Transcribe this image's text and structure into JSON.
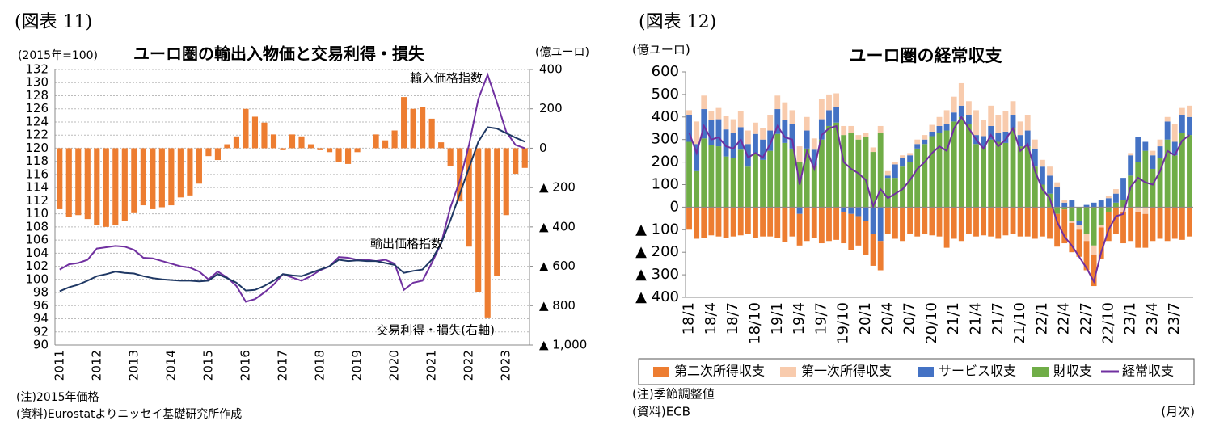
{
  "chart_data": [
    {
      "type": "bar_line",
      "figure_label": "(図表 11)",
      "title": "ユーロ圏の輸出入物価と交易利得・損失",
      "y_label": "(2015年=100)",
      "y2_label": "(億ユーロ)",
      "notes": [
        "(注)2015年価格",
        "(資料)Eurostatよりニッセイ基礎研究所作成"
      ],
      "categories": [
        "2011",
        null,
        null,
        null,
        "2012",
        null,
        null,
        null,
        "2013",
        null,
        null,
        null,
        "2014",
        null,
        null,
        null,
        "2015",
        null,
        null,
        null,
        "2016",
        null,
        null,
        null,
        "2017",
        null,
        null,
        null,
        "2018",
        null,
        null,
        null,
        "2019",
        null,
        null,
        null,
        "2020",
        null,
        null,
        null,
        "2021",
        null,
        null,
        null,
        "2022",
        null,
        null,
        null,
        "2023",
        null,
        null
      ],
      "ylim": [
        90,
        132
      ],
      "yticks": [
        90,
        92,
        94,
        96,
        98,
        100,
        102,
        104,
        106,
        108,
        110,
        112,
        114,
        116,
        118,
        120,
        122,
        124,
        126,
        128,
        130,
        132
      ],
      "y2lim": [
        -1000,
        400
      ],
      "y2ticks": [
        400,
        200,
        0,
        {
          "value": -200,
          "label": "▲ 200"
        },
        {
          "value": -400,
          "label": "▲ 400"
        },
        {
          "value": -600,
          "label": "▲ 600"
        },
        {
          "value": -800,
          "label": "▲ 800"
        },
        {
          "value": -1000,
          "label": "▲ 1,000"
        }
      ],
      "grid": true,
      "series": [
        {
          "name": "交易利得・損失(右軸)",
          "type": "bar",
          "axis": "y2",
          "color": "#ed7d31",
          "values": [
            -310,
            -350,
            -340,
            -360,
            -390,
            -400,
            -390,
            -370,
            -330,
            -290,
            -310,
            -300,
            -290,
            -250,
            -240,
            -180,
            -40,
            -60,
            20,
            60,
            200,
            160,
            130,
            70,
            -10,
            70,
            60,
            20,
            -10,
            -20,
            -70,
            -80,
            -20,
            0,
            70,
            40,
            90,
            260,
            200,
            210,
            150,
            30,
            -90,
            -270,
            -500,
            -730,
            -860,
            -650,
            -340,
            -130,
            -100
          ]
        },
        {
          "name": "輸入価格指数",
          "type": "line",
          "color": "#7030a0",
          "values": [
            101.5,
            102.3,
            102.5,
            103,
            104.7,
            104.9,
            105.1,
            105,
            104.5,
            103.3,
            103.2,
            102.8,
            102.4,
            102,
            101.8,
            101.2,
            100,
            101.2,
            100.3,
            99,
            96.6,
            97,
            98,
            99.2,
            100.8,
            100.3,
            99.8,
            100.5,
            101.4,
            102,
            103.4,
            103.3,
            103,
            103,
            102.8,
            103,
            102.4,
            98.4,
            99.5,
            99.8,
            102.5,
            105.5,
            111,
            115,
            120.5,
            127.5,
            131.2,
            127,
            122.5,
            120.5,
            120
          ]
        },
        {
          "name": "輸出価格指数",
          "type": "line",
          "color": "#1f3864",
          "values": [
            98.2,
            98.8,
            99.2,
            99.8,
            100.5,
            100.8,
            101.2,
            101,
            100.9,
            100.5,
            100.2,
            100,
            99.9,
            99.8,
            99.8,
            99.7,
            99.8,
            100.8,
            100.2,
            99.5,
            98.3,
            98.4,
            99,
            99.8,
            100.8,
            100.6,
            100.5,
            101,
            101.5,
            102,
            103,
            102.8,
            102.9,
            102.8,
            102.8,
            102.5,
            102.2,
            101,
            101.3,
            101.5,
            103,
            105.5,
            109,
            113,
            117,
            121,
            123.2,
            123,
            122.3,
            121.6,
            121
          ]
        }
      ]
    },
    {
      "type": "stacked_bar_line",
      "figure_label": "(図表 12)",
      "title": "ユーロ圏の経常収支",
      "y_label": "(億ユーロ)",
      "x_label": "(月次)",
      "notes": [
        "(注)季節調整値",
        "(資料)ECB"
      ],
      "legend": "bottom",
      "grid": false,
      "categories": [
        "18/1",
        null,
        null,
        "18/4",
        null,
        null,
        "18/7",
        null,
        null,
        "18/10",
        null,
        null,
        "19/1",
        null,
        null,
        "19/4",
        null,
        null,
        "19/7",
        null,
        null,
        "19/10",
        null,
        null,
        "20/1",
        null,
        null,
        "20/4",
        null,
        null,
        "20/7",
        null,
        null,
        "20/10",
        null,
        null,
        "21/1",
        null,
        null,
        "21/4",
        null,
        null,
        "21/7",
        null,
        null,
        "21/10",
        null,
        null,
        "22/1",
        null,
        null,
        "22/4",
        null,
        null,
        "22/7",
        null,
        null,
        "22/10",
        null,
        null,
        "23/1",
        null,
        null,
        "23/4",
        null,
        null,
        "23/7",
        null,
        null
      ],
      "ylim": [
        -400,
        600
      ],
      "yticks": [
        600,
        500,
        400,
        300,
        200,
        100,
        0,
        {
          "value": -100,
          "label": "▲ 100"
        },
        {
          "value": -200,
          "label": "▲ 200"
        },
        {
          "value": -300,
          "label": "▲ 300"
        },
        {
          "value": -400,
          "label": "▲ 400"
        }
      ],
      "series": [
        {
          "name": "第二次所得収支",
          "type": "bar",
          "color": "#ed7d31",
          "values": [
            -100,
            -140,
            -135,
            -125,
            -130,
            -135,
            -130,
            -125,
            -120,
            -135,
            -130,
            -130,
            -135,
            -155,
            -130,
            -140,
            -150,
            -135,
            -160,
            -150,
            -145,
            -140,
            -160,
            -130,
            -150,
            -140,
            -130,
            -120,
            -140,
            -150,
            -120,
            -130,
            -120,
            -125,
            -130,
            -180,
            -140,
            -150,
            -120,
            -130,
            -125,
            -130,
            -140,
            -125,
            -120,
            -130,
            -130,
            -140,
            -130,
            -140,
            -145,
            -150,
            -130,
            -120,
            -130,
            -140,
            -140,
            -130,
            -120,
            -140,
            -150,
            -160,
            -150,
            -150,
            -140,
            -150,
            -140,
            -145,
            -130
          ]
        },
        {
          "name": "第一次所得収支",
          "type": "bar",
          "color": "#f8cbad",
          "values": [
            20,
            100,
            60,
            40,
            50,
            60,
            60,
            70,
            60,
            50,
            50,
            70,
            60,
            80,
            60,
            70,
            60,
            50,
            90,
            70,
            60,
            40,
            30,
            20,
            20,
            20,
            30,
            20,
            10,
            10,
            10,
            20,
            20,
            30,
            40,
            60,
            70,
            100,
            60,
            110,
            70,
            90,
            80,
            90,
            60,
            60,
            70,
            40,
            30,
            40,
            20,
            10,
            -10,
            -20,
            -30,
            -40,
            -10,
            10,
            20,
            -20,
            10,
            -20,
            -30,
            20,
            30,
            20,
            80,
            30,
            50
          ]
        },
        {
          "name": "サービス収支",
          "type": "bar",
          "color": "#4472c4",
          "values": [
            120,
            120,
            130,
            110,
            120,
            120,
            110,
            100,
            100,
            90,
            90,
            90,
            110,
            100,
            110,
            -30,
            80,
            70,
            90,
            70,
            70,
            -20,
            -30,
            -40,
            -60,
            -120,
            -150,
            10,
            60,
            40,
            30,
            20,
            20,
            20,
            30,
            30,
            40,
            50,
            40,
            40,
            50,
            60,
            40,
            50,
            60,
            50,
            70,
            80,
            80,
            80,
            90,
            20,
            30,
            -20,
            10,
            20,
            30,
            40,
            40,
            100,
            90,
            110,
            40,
            60,
            50,
            80,
            60,
            80,
            80
          ]
        },
        {
          "name": "財収支",
          "type": "bar",
          "color": "#70ad47",
          "values": [
            290,
            160,
            305,
            275,
            270,
            225,
            220,
            255,
            180,
            235,
            210,
            250,
            325,
            285,
            260,
            200,
            260,
            185,
            300,
            360,
            375,
            320,
            330,
            300,
            310,
            245,
            330,
            130,
            130,
            180,
            200,
            260,
            280,
            315,
            330,
            340,
            380,
            400,
            370,
            280,
            265,
            300,
            290,
            285,
            350,
            270,
            270,
            180,
            100,
            60,
            -30,
            -10,
            -60,
            -60,
            -120,
            -170,
            -80,
            -20,
            20,
            30,
            140,
            200,
            250,
            170,
            220,
            300,
            230,
            330,
            320
          ]
        },
        {
          "name": "経常収支",
          "type": "line",
          "color": "#7030a0",
          "values": [
            330,
            240,
            360,
            300,
            310,
            270,
            260,
            300,
            220,
            240,
            220,
            280,
            360,
            310,
            300,
            100,
            250,
            170,
            320,
            350,
            360,
            200,
            170,
            150,
            120,
            5,
            80,
            40,
            60,
            80,
            120,
            170,
            200,
            240,
            270,
            250,
            350,
            400,
            350,
            300,
            260,
            320,
            270,
            300,
            350,
            250,
            280,
            160,
            80,
            40,
            -65,
            -130,
            -170,
            -220,
            -270,
            -330,
            -200,
            -100,
            -40,
            -30,
            90,
            130,
            110,
            100,
            160,
            250,
            230,
            295,
            320
          ]
        }
      ]
    }
  ]
}
